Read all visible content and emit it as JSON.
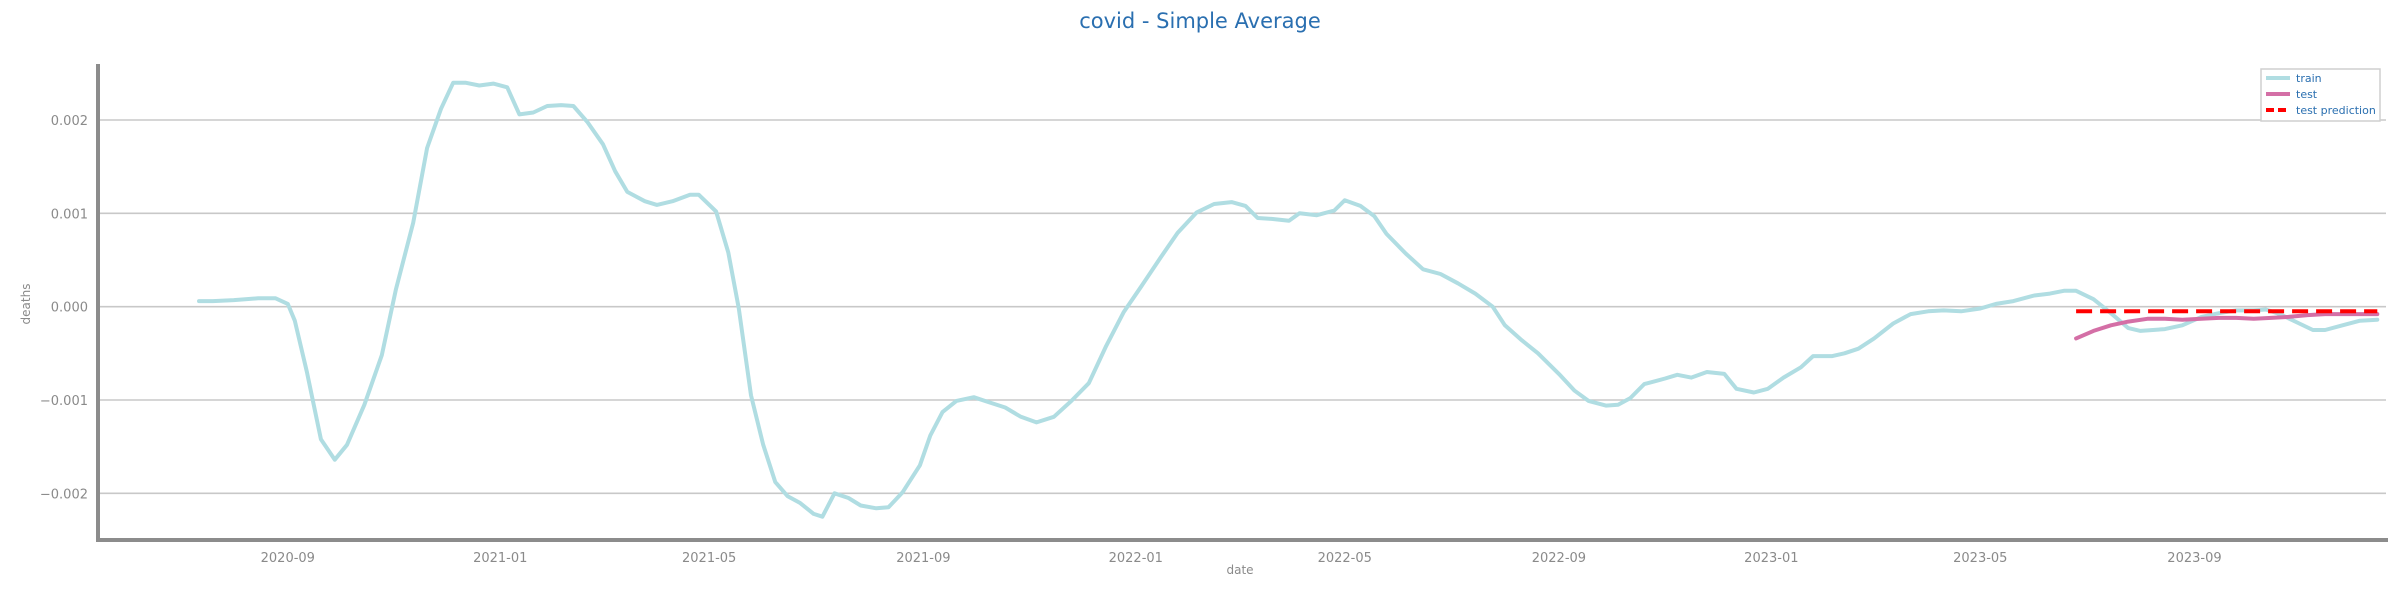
{
  "chart_data": {
    "type": "line",
    "title": "covid - Simple Average",
    "xlabel": "date",
    "ylabel": "deaths",
    "x_ticks": [
      "2020-09",
      "2021-01",
      "2021-05",
      "2021-09",
      "2022-01",
      "2022-05",
      "2022-09",
      "2023-01",
      "2023-05",
      "2023-09"
    ],
    "y_ticks": [
      "0.002",
      "0.001",
      "0.000",
      "−0.001",
      "−0.002"
    ],
    "ylim": [
      -0.0025,
      0.0026
    ],
    "xlim": [
      "2020-05-15",
      "2023-12-20"
    ],
    "grid": "horizontal",
    "legend_position": "top-right",
    "series": [
      {
        "name": "train",
        "color": "#b0dde2",
        "dash": "solid",
        "points": [
          [
            "2020-07-12",
            6e-05
          ],
          [
            "2020-07-20",
            6e-05
          ],
          [
            "2020-08-01",
            7e-05
          ],
          [
            "2020-08-15",
            9e-05
          ],
          [
            "2020-08-25",
            9e-05
          ],
          [
            "2020-09-01",
            3e-05
          ],
          [
            "2020-09-05",
            -0.00015
          ],
          [
            "2020-09-12",
            -0.0007
          ],
          [
            "2020-09-20",
            -0.00142
          ],
          [
            "2020-09-28",
            -0.00164
          ],
          [
            "2020-10-05",
            -0.00148
          ],
          [
            "2020-10-15",
            -0.00105
          ],
          [
            "2020-10-25",
            -0.00052
          ],
          [
            "2020-11-02",
            0.00018
          ],
          [
            "2020-11-12",
            0.0009
          ],
          [
            "2020-11-20",
            0.0017
          ],
          [
            "2020-11-28",
            0.00212
          ],
          [
            "2020-12-05",
            0.0024
          ],
          [
            "2020-12-12",
            0.0024
          ],
          [
            "2020-12-20",
            0.00237
          ],
          [
            "2020-12-28",
            0.00239
          ],
          [
            "2021-01-05",
            0.00235
          ],
          [
            "2021-01-12",
            0.00206
          ],
          [
            "2021-01-20",
            0.00208
          ],
          [
            "2021-01-28",
            0.00215
          ],
          [
            "2021-02-05",
            0.00216
          ],
          [
            "2021-02-12",
            0.00215
          ],
          [
            "2021-02-20",
            0.00198
          ],
          [
            "2021-03-01",
            0.00174
          ],
          [
            "2021-03-08",
            0.00145
          ],
          [
            "2021-03-15",
            0.00123
          ],
          [
            "2021-03-25",
            0.00113
          ],
          [
            "2021-04-01",
            0.00109
          ],
          [
            "2021-04-10",
            0.00113
          ],
          [
            "2021-04-20",
            0.0012
          ],
          [
            "2021-04-25",
            0.0012
          ],
          [
            "2021-05-05",
            0.00102
          ],
          [
            "2021-05-12",
            0.00058
          ],
          [
            "2021-05-18",
            -2e-05
          ],
          [
            "2021-05-25",
            -0.00095
          ],
          [
            "2021-06-01",
            -0.00148
          ],
          [
            "2021-06-08",
            -0.00188
          ],
          [
            "2021-06-15",
            -0.00203
          ],
          [
            "2021-06-22",
            -0.0021
          ],
          [
            "2021-06-30",
            -0.00222
          ],
          [
            "2021-07-05",
            -0.00225
          ],
          [
            "2021-07-12",
            -0.002
          ],
          [
            "2021-07-20",
            -0.00205
          ],
          [
            "2021-07-27",
            -0.00213
          ],
          [
            "2021-08-05",
            -0.00216
          ],
          [
            "2021-08-12",
            -0.00215
          ],
          [
            "2021-08-20",
            -0.00199
          ],
          [
            "2021-08-30",
            -0.0017
          ],
          [
            "2021-09-05",
            -0.00138
          ],
          [
            "2021-09-12",
            -0.00113
          ],
          [
            "2021-09-20",
            -0.00101
          ],
          [
            "2021-09-30",
            -0.00097
          ],
          [
            "2021-10-08",
            -0.00102
          ],
          [
            "2021-10-18",
            -0.00108
          ],
          [
            "2021-10-27",
            -0.00118
          ],
          [
            "2021-11-05",
            -0.00124
          ],
          [
            "2021-11-15",
            -0.00118
          ],
          [
            "2021-11-25",
            -0.00101
          ],
          [
            "2021-12-05",
            -0.00082
          ],
          [
            "2021-12-15",
            -0.00042
          ],
          [
            "2021-12-25",
            -6e-05
          ],
          [
            "2022-01-05",
            0.00024
          ],
          [
            "2022-01-15",
            0.00052
          ],
          [
            "2022-01-25",
            0.00079
          ],
          [
            "2022-02-05",
            0.00101
          ],
          [
            "2022-02-15",
            0.0011
          ],
          [
            "2022-02-25",
            0.00112
          ],
          [
            "2022-03-05",
            0.00108
          ],
          [
            "2022-03-12",
            0.00095
          ],
          [
            "2022-03-20",
            0.00094
          ],
          [
            "2022-03-30",
            0.00092
          ],
          [
            "2022-04-05",
            0.001
          ],
          [
            "2022-04-15",
            0.00098
          ],
          [
            "2022-04-25",
            0.00103
          ],
          [
            "2022-05-01",
            0.00114
          ],
          [
            "2022-05-10",
            0.00108
          ],
          [
            "2022-05-18",
            0.00097
          ],
          [
            "2022-05-25",
            0.00078
          ],
          [
            "2022-06-05",
            0.00057
          ],
          [
            "2022-06-15",
            0.0004
          ],
          [
            "2022-06-25",
            0.00035
          ],
          [
            "2022-07-05",
            0.00025
          ],
          [
            "2022-07-15",
            0.00014
          ],
          [
            "2022-07-25",
            0
          ],
          [
            "2022-08-01",
            -0.0002
          ],
          [
            "2022-08-10",
            -0.00035
          ],
          [
            "2022-08-20",
            -0.0005
          ],
          [
            "2022-09-01",
            -0.00072
          ],
          [
            "2022-09-10",
            -0.0009
          ],
          [
            "2022-09-18",
            -0.00101
          ],
          [
            "2022-09-28",
            -0.00106
          ],
          [
            "2022-10-05",
            -0.00105
          ],
          [
            "2022-10-12",
            -0.00098
          ],
          [
            "2022-10-20",
            -0.00083
          ],
          [
            "2022-11-01",
            -0.00077
          ],
          [
            "2022-11-08",
            -0.00073
          ],
          [
            "2022-11-16",
            -0.00076
          ],
          [
            "2022-11-25",
            -0.0007
          ],
          [
            "2022-12-05",
            -0.00072
          ],
          [
            "2022-12-12",
            -0.00088
          ],
          [
            "2022-12-22",
            -0.00092
          ],
          [
            "2022-12-30",
            -0.00088
          ],
          [
            "2023-01-08",
            -0.00076
          ],
          [
            "2023-01-18",
            -0.00065
          ],
          [
            "2023-01-25",
            -0.00053
          ],
          [
            "2023-02-05",
            -0.00053
          ],
          [
            "2023-02-12",
            -0.0005
          ],
          [
            "2023-02-20",
            -0.00045
          ],
          [
            "2023-03-01",
            -0.00034
          ],
          [
            "2023-03-12",
            -0.00018
          ],
          [
            "2023-03-22",
            -8e-05
          ],
          [
            "2023-04-01",
            -5e-05
          ],
          [
            "2023-04-10",
            -4e-05
          ],
          [
            "2023-04-20",
            -5e-05
          ],
          [
            "2023-05-01",
            -2e-05
          ],
          [
            "2023-05-10",
            3e-05
          ],
          [
            "2023-05-20",
            6e-05
          ],
          [
            "2023-06-01",
            0.00012
          ],
          [
            "2023-06-10",
            0.00014
          ],
          [
            "2023-06-18",
            0.00017
          ],
          [
            "2023-06-25",
            0.00017
          ],
          [
            "2023-07-05",
            8e-05
          ],
          [
            "2023-07-15",
            -7e-05
          ],
          [
            "2023-07-25",
            -0.00023
          ],
          [
            "2023-08-01",
            -0.00026
          ],
          [
            "2023-08-15",
            -0.00024
          ],
          [
            "2023-08-25",
            -0.0002
          ],
          [
            "2023-09-05",
            -0.00011
          ],
          [
            "2023-09-15",
            -7e-05
          ],
          [
            "2023-09-25",
            -4e-05
          ],
          [
            "2023-10-05",
            -4e-05
          ],
          [
            "2023-10-12",
            -3e-05
          ],
          [
            "2023-10-20",
            -8e-05
          ],
          [
            "2023-10-30",
            -0.00017
          ],
          [
            "2023-11-08",
            -0.00025
          ],
          [
            "2023-11-15",
            -0.00025
          ],
          [
            "2023-11-25",
            -0.0002
          ],
          [
            "2023-12-05",
            -0.00015
          ],
          [
            "2023-12-15",
            -0.00014
          ]
        ]
      },
      {
        "name": "test",
        "color": "#d46fa6",
        "dash": "solid",
        "points": [
          [
            "2023-06-25",
            -0.00034
          ],
          [
            "2023-07-05",
            -0.00026
          ],
          [
            "2023-07-15",
            -0.0002
          ],
          [
            "2023-07-25",
            -0.00016
          ],
          [
            "2023-08-05",
            -0.00013
          ],
          [
            "2023-08-15",
            -0.00013
          ],
          [
            "2023-08-25",
            -0.00014
          ],
          [
            "2023-09-05",
            -0.00013
          ],
          [
            "2023-09-15",
            -0.00012
          ],
          [
            "2023-09-25",
            -0.00012
          ],
          [
            "2023-10-05",
            -0.00013
          ],
          [
            "2023-10-15",
            -0.00012
          ],
          [
            "2023-10-25",
            -0.00011
          ],
          [
            "2023-11-05",
            -9e-05
          ],
          [
            "2023-11-15",
            -8e-05
          ],
          [
            "2023-11-25",
            -8e-05
          ],
          [
            "2023-12-05",
            -8e-05
          ],
          [
            "2023-12-15",
            -8e-05
          ]
        ]
      },
      {
        "name": "test prediction",
        "color": "#ff0000",
        "dash": "dashed",
        "points": [
          [
            "2023-06-25",
            -5e-05
          ],
          [
            "2023-12-15",
            -5e-05
          ]
        ]
      }
    ]
  }
}
